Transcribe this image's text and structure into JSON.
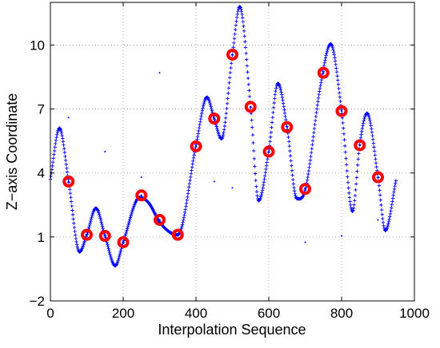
{
  "chart_data": {
    "type": "scatter",
    "xlabel": "Interpolation Sequence",
    "ylabel": "Z−axis Coordinate",
    "xlim": [
      0,
      1000
    ],
    "ylim": [
      -2,
      12
    ],
    "x_ticks": [
      0,
      200,
      400,
      600,
      800,
      1000
    ],
    "y_ticks": [
      -2,
      1,
      4,
      7,
      10
    ],
    "x_tick_labels": [
      "0",
      "200",
      "400",
      "600",
      "800",
      "1000"
    ],
    "y_tick_labels": [
      "−2",
      "1",
      "4",
      "7",
      "10"
    ],
    "grid": true,
    "legend": "none",
    "colors": {
      "curve": "#0000ff",
      "markers": "#ff0000"
    },
    "series": [
      {
        "marker": "plus",
        "style": "dense blue plus markers forming a continuous curve",
        "x_range": [
          0,
          950
        ],
        "shape_points": [
          [
            0,
            3.7
          ],
          [
            25,
            6.1
          ],
          [
            50,
            3.6
          ],
          [
            80,
            0.3
          ],
          [
            100,
            1.1
          ],
          [
            125,
            2.35
          ],
          [
            150,
            1.05
          ],
          [
            178,
            -0.35
          ],
          [
            200,
            0.75
          ],
          [
            245,
            2.85
          ],
          [
            270,
            2.6
          ],
          [
            300,
            1.7
          ],
          [
            330,
            1.2
          ],
          [
            350,
            1.1
          ],
          [
            400,
            5.3
          ],
          [
            430,
            7.55
          ],
          [
            450,
            6.55
          ],
          [
            470,
            5.6
          ],
          [
            500,
            9.55
          ],
          [
            520,
            11.8
          ],
          [
            550,
            7.1
          ],
          [
            572,
            2.7
          ],
          [
            600,
            5.05
          ],
          [
            625,
            8.2
          ],
          [
            650,
            6.15
          ],
          [
            677,
            2.8
          ],
          [
            700,
            3.2
          ],
          [
            742,
            8.1
          ],
          [
            770,
            10.05
          ],
          [
            800,
            6.9
          ],
          [
            830,
            2.2
          ],
          [
            850,
            5.35
          ],
          [
            870,
            6.8
          ],
          [
            900,
            3.8
          ],
          [
            920,
            1.3
          ],
          [
            950,
            3.7
          ]
        ]
      },
      {
        "marker": "circle",
        "style": "red open circles at sample points",
        "points": [
          [
            50,
            3.6
          ],
          [
            100,
            1.1
          ],
          [
            150,
            1.05
          ],
          [
            200,
            0.75
          ],
          [
            250,
            2.95
          ],
          [
            300,
            1.8
          ],
          [
            350,
            1.1
          ],
          [
            400,
            5.25
          ],
          [
            450,
            6.55
          ],
          [
            500,
            9.55
          ],
          [
            550,
            7.1
          ],
          [
            600,
            5.0
          ],
          [
            650,
            6.15
          ],
          [
            700,
            3.25
          ],
          [
            750,
            8.7
          ],
          [
            800,
            6.9
          ],
          [
            850,
            5.3
          ],
          [
            900,
            3.8
          ]
        ]
      },
      {
        "marker": "dot",
        "style": "small scattered blue dots",
        "points": [
          [
            50,
            6.6
          ],
          [
            150,
            5.0
          ],
          [
            250,
            3.8
          ],
          [
            300,
            8.7
          ],
          [
            450,
            3.6
          ],
          [
            500,
            3.3
          ],
          [
            700,
            0.75
          ],
          [
            800,
            1.05
          ],
          [
            900,
            1.8
          ]
        ]
      }
    ]
  }
}
